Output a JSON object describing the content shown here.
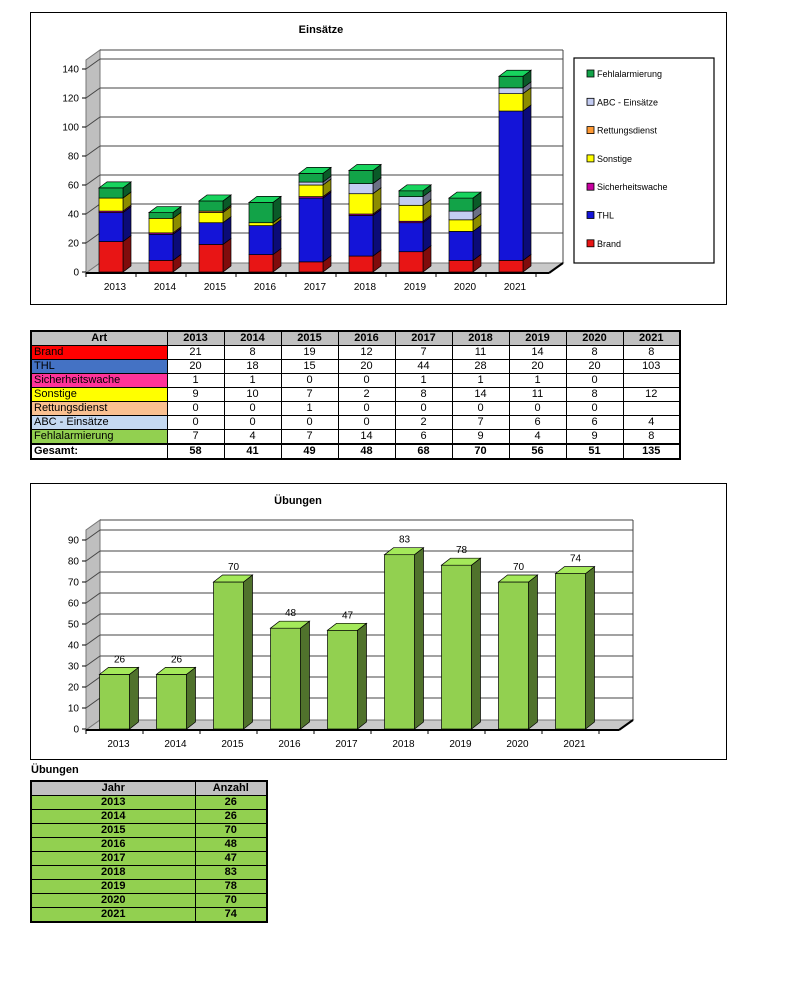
{
  "page": {
    "background": "#FFFFFF"
  },
  "chart_data": [
    {
      "type": "bar",
      "variant": "3d-stacked-column",
      "title": "Einsätze",
      "categories": [
        "2013",
        "2014",
        "2015",
        "2016",
        "2017",
        "2018",
        "2019",
        "2020",
        "2021"
      ],
      "series": [
        {
          "name": "Brand",
          "color": "#E81515",
          "values": [
            21,
            8,
            19,
            12,
            7,
            11,
            14,
            8,
            8
          ]
        },
        {
          "name": "THL",
          "color": "#1414D8",
          "values": [
            20,
            18,
            15,
            20,
            44,
            28,
            20,
            20,
            103
          ]
        },
        {
          "name": "Sicherheitswache",
          "color": "#C800A0",
          "values": [
            1,
            1,
            0,
            0,
            1,
            1,
            1,
            0,
            0
          ]
        },
        {
          "name": "Sonstige",
          "color": "#FFFF00",
          "values": [
            9,
            10,
            7,
            2,
            8,
            14,
            11,
            8,
            12
          ]
        },
        {
          "name": "Rettungsdienst",
          "color": "#FF9933",
          "values": [
            0,
            0,
            1,
            0,
            0,
            0,
            0,
            0,
            0
          ]
        },
        {
          "name": "ABC - Einsätze",
          "color": "#C3CCF2",
          "values": [
            0,
            0,
            0,
            0,
            2,
            7,
            6,
            6,
            4
          ]
        },
        {
          "name": "Fehlalarmierung",
          "color": "#12A348",
          "values": [
            7,
            4,
            7,
            14,
            6,
            9,
            4,
            9,
            8
          ]
        }
      ],
      "ylim": [
        0,
        140
      ],
      "ytick": 20,
      "grid": true,
      "legend": {
        "position": "right",
        "items_top_to_bottom": [
          "Fehlalarmierung",
          "ABC - Einsätze",
          "Rettungsdienst",
          "Sonstige",
          "Sicherheitswache",
          "THL",
          "Brand"
        ]
      }
    },
    {
      "type": "bar",
      "variant": "3d-column",
      "title": "Übungen",
      "categories": [
        "2013",
        "2014",
        "2015",
        "2016",
        "2017",
        "2018",
        "2019",
        "2020",
        "2021"
      ],
      "values": [
        26,
        26,
        70,
        48,
        47,
        83,
        78,
        70,
        74
      ],
      "data_labels": [
        26,
        26,
        70,
        48,
        47,
        83,
        78,
        70,
        74
      ],
      "bar_color": "#92D050",
      "ylim": [
        0,
        90
      ],
      "ytick": 10,
      "grid": true,
      "legend": {
        "position": "none"
      }
    }
  ],
  "einsaetze_table": {
    "header": [
      "Art",
      "2013",
      "2014",
      "2015",
      "2016",
      "2017",
      "2018",
      "2019",
      "2020",
      "2021"
    ],
    "rows": [
      {
        "label": "Brand",
        "color": "#FF0000",
        "values": [
          "21",
          "8",
          "19",
          "12",
          "7",
          "11",
          "14",
          "8",
          "8"
        ]
      },
      {
        "label": "THL",
        "color": "#4472C4",
        "values": [
          "20",
          "18",
          "15",
          "20",
          "44",
          "28",
          "20",
          "20",
          "103"
        ]
      },
      {
        "label": "Sicherheitswache",
        "color": "#FF3399",
        "values": [
          "1",
          "1",
          "0",
          "0",
          "1",
          "1",
          "1",
          "0",
          ""
        ]
      },
      {
        "label": "Sonstige",
        "color": "#FFFF00",
        "values": [
          "9",
          "10",
          "7",
          "2",
          "8",
          "14",
          "11",
          "8",
          "12"
        ]
      },
      {
        "label": "Rettungsdienst",
        "color": "#FAC090",
        "values": [
          "0",
          "0",
          "1",
          "0",
          "0",
          "0",
          "0",
          "0",
          ""
        ]
      },
      {
        "label": "ABC - Einsätze",
        "color": "#C5D9F1",
        "values": [
          "0",
          "0",
          "0",
          "0",
          "2",
          "7",
          "6",
          "6",
          "4"
        ]
      },
      {
        "label": "Fehlalarmierung",
        "color": "#92D050",
        "values": [
          "7",
          "4",
          "7",
          "14",
          "6",
          "9",
          "4",
          "9",
          "8"
        ]
      }
    ],
    "total": {
      "label": "Gesamt:",
      "values": [
        "58",
        "41",
        "49",
        "48",
        "68",
        "70",
        "56",
        "51",
        "135"
      ]
    },
    "header_color": "#C0C0C0"
  },
  "uebungen_table": {
    "title": "Übungen",
    "header": [
      "Jahr",
      "Anzahl"
    ],
    "header_color": "#C0C0C0",
    "row_color": "#92D050",
    "rows": [
      [
        "2013",
        "26"
      ],
      [
        "2014",
        "26"
      ],
      [
        "2015",
        "70"
      ],
      [
        "2016",
        "48"
      ],
      [
        "2017",
        "47"
      ],
      [
        "2018",
        "83"
      ],
      [
        "2019",
        "78"
      ],
      [
        "2020",
        "70"
      ],
      [
        "2021",
        "74"
      ]
    ]
  }
}
